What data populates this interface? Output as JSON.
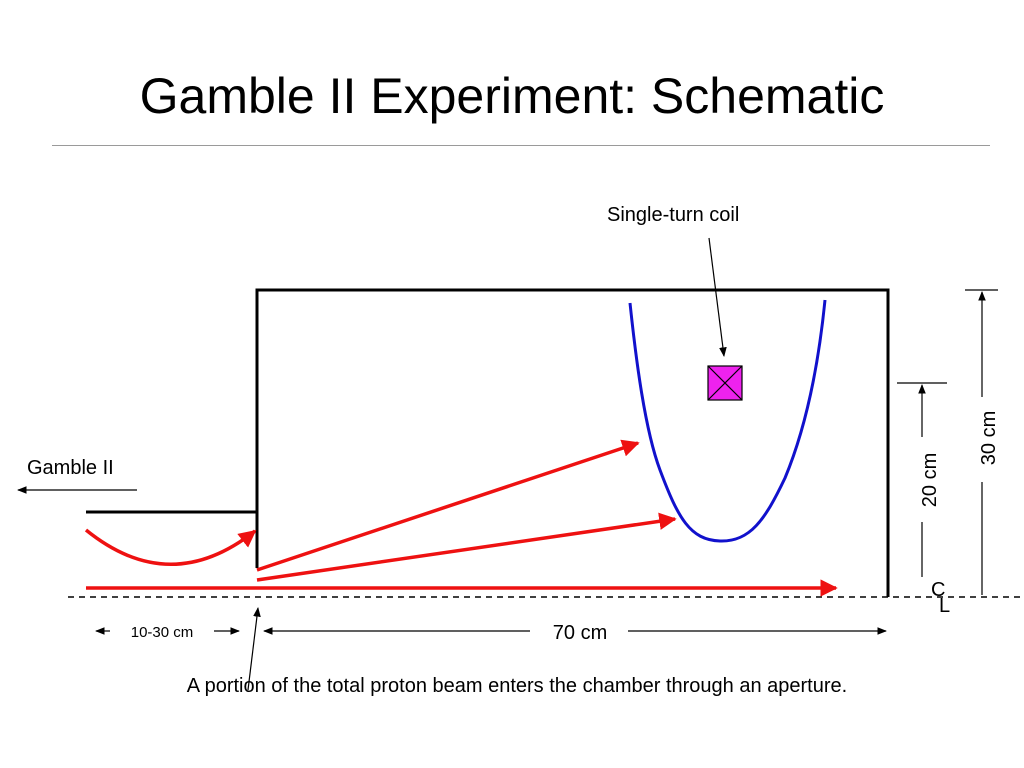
{
  "title": "Gamble II Experiment:  Schematic",
  "labels": {
    "coil": "Single-turn coil",
    "source": "Gamble II",
    "centerline_c": "C",
    "centerline_l": "L",
    "dim_height_outer": "30 cm",
    "dim_height_inner": "20 cm",
    "dim_length": "70 cm",
    "dim_gap": "10-30 cm",
    "caption": "A portion of the total proton beam enters the chamber through an aperture."
  },
  "colors": {
    "chamber": "#000000",
    "beam": "#ee1111",
    "field_line": "#1111cc",
    "coil_fill": "#ee22ee",
    "centerline": "#000000"
  }
}
